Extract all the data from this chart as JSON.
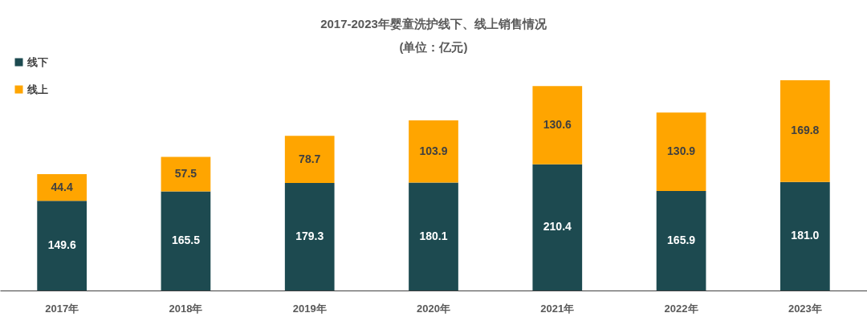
{
  "chart_data": {
    "type": "bar",
    "title": "2017-2023年婴童洗护线下、线上销售情况",
    "subtitle": "(单位：亿元)",
    "stacked": true,
    "legend": "top left",
    "tick_labels": "x",
    "categories": [
      "2017年",
      "2018年",
      "2019年",
      "2020年",
      "2021年",
      "2022年",
      "2023年"
    ],
    "series": [
      {
        "name": "线下",
        "color": "#1d4a50",
        "values": [
          149.6,
          165.5,
          179.3,
          180.1,
          210.4,
          165.9,
          181.0
        ],
        "value_labels": [
          "149.6",
          "165.5",
          "179.3",
          "180.1",
          "210.4",
          "165.9",
          "181.0"
        ]
      },
      {
        "name": "线上",
        "color": "#ffa500",
        "values": [
          44.4,
          57.5,
          78.7,
          103.9,
          130.6,
          130.9,
          169.8
        ],
        "value_labels": [
          "44.4",
          "57.5",
          "78.7",
          "103.9",
          "130.6",
          "130.9",
          "169.8"
        ]
      }
    ]
  }
}
